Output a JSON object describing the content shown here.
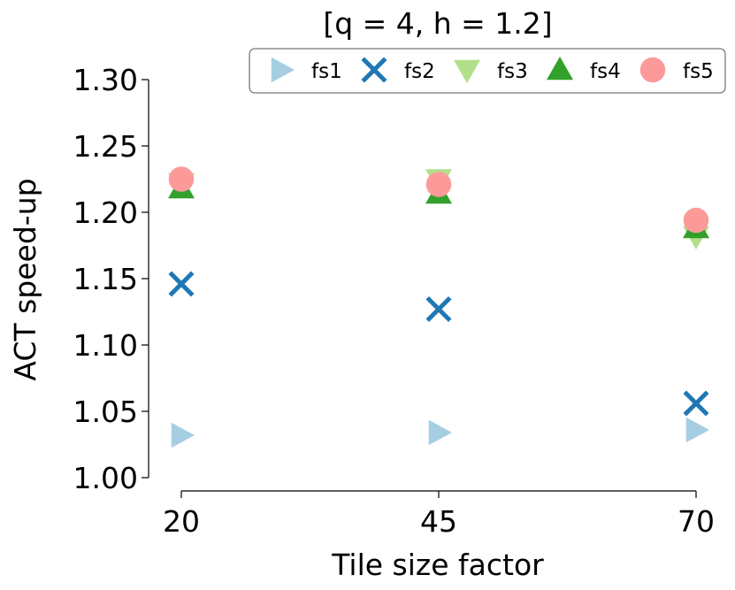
{
  "chart_data": {
    "type": "scatter",
    "title": "[q = 4, h = 1.2]",
    "xlabel": "Tile size factor",
    "ylabel": "ACT speed-up",
    "categories": [
      "20",
      "45",
      "70"
    ],
    "ylim": [
      1.0,
      1.3
    ],
    "yticks": [
      "1.00",
      "1.05",
      "1.10",
      "1.15",
      "1.20",
      "1.25",
      "1.30"
    ],
    "grid": false,
    "legend_position": "top",
    "series": [
      {
        "name": "fs1",
        "marker": "triangle-right",
        "color": "#a6cee3",
        "values": [
          1.032,
          1.034,
          1.036
        ]
      },
      {
        "name": "fs2",
        "marker": "x",
        "color": "#1f78b4",
        "values": [
          1.146,
          1.127,
          1.056
        ]
      },
      {
        "name": "fs3",
        "marker": "triangle-down",
        "color": "#b2df8a",
        "values": [
          1.222,
          1.225,
          1.182
        ]
      },
      {
        "name": "fs4",
        "marker": "triangle-up",
        "color": "#33a02c",
        "values": [
          1.218,
          1.214,
          1.188
        ]
      },
      {
        "name": "fs5",
        "marker": "circle",
        "color": "#fb9a99",
        "values": [
          1.225,
          1.221,
          1.194
        ]
      }
    ]
  }
}
